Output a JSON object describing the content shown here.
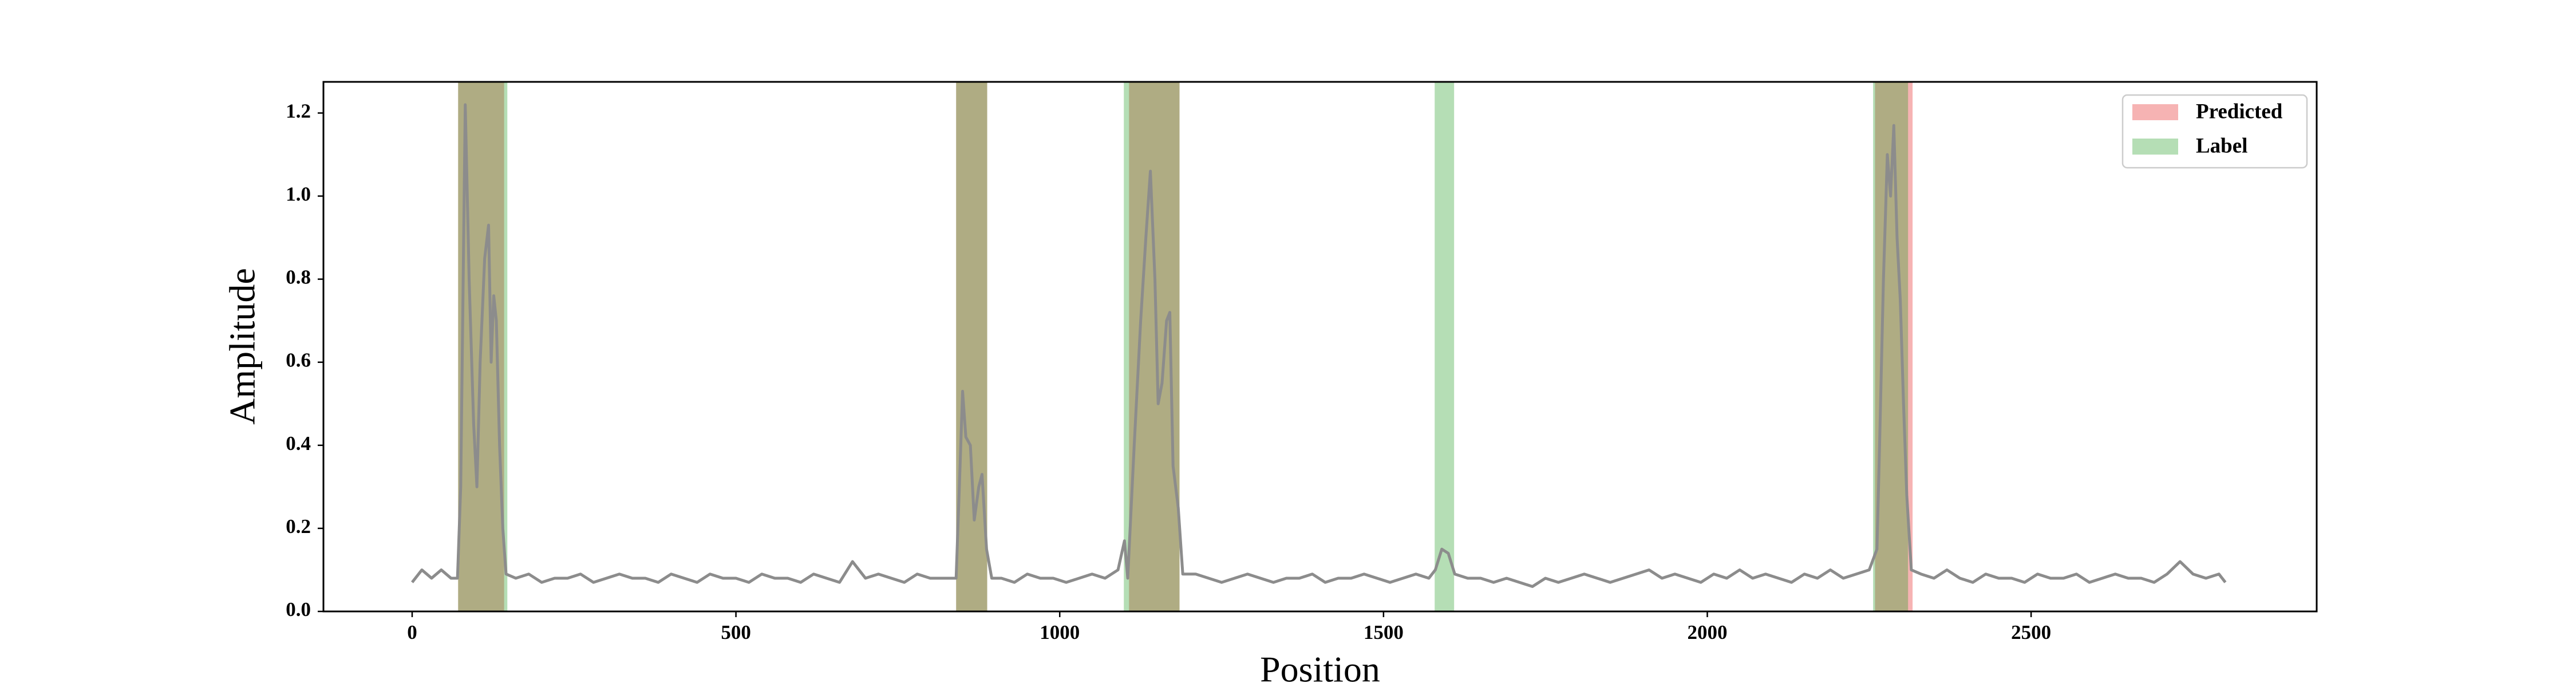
{
  "chart_data": {
    "type": "line",
    "xlabel": "Position",
    "ylabel": "Amplitude",
    "xlim": [
      -137,
      2941
    ],
    "ylim": [
      0,
      1.275
    ],
    "xticks": [
      0,
      500,
      1000,
      1500,
      2000,
      2500
    ],
    "yticks": [
      {
        "value": 0,
        "label": "0.0"
      },
      0.2,
      0.4,
      0.6,
      0.8,
      {
        "value": 1,
        "label": "1.0"
      },
      1.2
    ],
    "legend": "upper right",
    "series": [
      {
        "color": "#8c8c8c",
        "x": [
          0,
          15,
          30,
          45,
          60,
          70,
          75,
          82,
          88,
          95,
          100,
          105,
          112,
          118,
          122,
          126,
          130,
          135,
          140,
          145,
          160,
          180,
          200,
          220,
          240,
          260,
          280,
          300,
          320,
          340,
          360,
          380,
          400,
          420,
          440,
          460,
          480,
          500,
          520,
          540,
          560,
          580,
          600,
          620,
          640,
          660,
          680,
          700,
          720,
          740,
          760,
          780,
          800,
          820,
          840,
          845,
          850,
          855,
          862,
          868,
          875,
          880,
          887,
          895,
          910,
          930,
          950,
          970,
          990,
          1010,
          1030,
          1050,
          1070,
          1090,
          1100,
          1105,
          1115,
          1125,
          1133,
          1140,
          1147,
          1152,
          1158,
          1165,
          1170,
          1175,
          1183,
          1190,
          1210,
          1230,
          1250,
          1270,
          1290,
          1310,
          1330,
          1350,
          1370,
          1390,
          1410,
          1430,
          1450,
          1470,
          1490,
          1510,
          1530,
          1550,
          1570,
          1580,
          1590,
          1600,
          1610,
          1630,
          1650,
          1670,
          1690,
          1710,
          1730,
          1750,
          1770,
          1790,
          1810,
          1830,
          1850,
          1870,
          1890,
          1910,
          1930,
          1950,
          1970,
          1990,
          2010,
          2030,
          2050,
          2070,
          2090,
          2110,
          2130,
          2150,
          2170,
          2190,
          2210,
          2230,
          2250,
          2262,
          2266,
          2272,
          2278,
          2283,
          2288,
          2293,
          2298,
          2303,
          2308,
          2315,
          2330,
          2350,
          2370,
          2390,
          2410,
          2430,
          2450,
          2470,
          2490,
          2510,
          2530,
          2550,
          2570,
          2590,
          2610,
          2630,
          2650,
          2670,
          2690,
          2710,
          2730,
          2750,
          2770,
          2790,
          2800
        ],
        "values": [
          0.07,
          0.1,
          0.08,
          0.1,
          0.08,
          0.08,
          0.3,
          1.22,
          0.8,
          0.45,
          0.3,
          0.6,
          0.85,
          0.93,
          0.6,
          0.76,
          0.7,
          0.4,
          0.2,
          0.09,
          0.08,
          0.09,
          0.07,
          0.08,
          0.08,
          0.09,
          0.07,
          0.08,
          0.09,
          0.08,
          0.08,
          0.07,
          0.09,
          0.08,
          0.07,
          0.09,
          0.08,
          0.08,
          0.07,
          0.09,
          0.08,
          0.08,
          0.07,
          0.09,
          0.08,
          0.07,
          0.12,
          0.08,
          0.09,
          0.08,
          0.07,
          0.09,
          0.08,
          0.08,
          0.08,
          0.3,
          0.53,
          0.42,
          0.4,
          0.22,
          0.3,
          0.33,
          0.15,
          0.08,
          0.08,
          0.07,
          0.09,
          0.08,
          0.08,
          0.07,
          0.08,
          0.09,
          0.08,
          0.1,
          0.17,
          0.08,
          0.4,
          0.7,
          0.9,
          1.06,
          0.8,
          0.5,
          0.55,
          0.7,
          0.72,
          0.35,
          0.25,
          0.09,
          0.09,
          0.08,
          0.07,
          0.08,
          0.09,
          0.08,
          0.07,
          0.08,
          0.08,
          0.09,
          0.07,
          0.08,
          0.08,
          0.09,
          0.08,
          0.07,
          0.08,
          0.09,
          0.08,
          0.1,
          0.15,
          0.14,
          0.09,
          0.08,
          0.08,
          0.07,
          0.08,
          0.07,
          0.06,
          0.08,
          0.07,
          0.08,
          0.09,
          0.08,
          0.07,
          0.08,
          0.09,
          0.1,
          0.08,
          0.09,
          0.08,
          0.07,
          0.09,
          0.08,
          0.1,
          0.08,
          0.09,
          0.08,
          0.07,
          0.09,
          0.08,
          0.1,
          0.08,
          0.09,
          0.1,
          0.15,
          0.4,
          0.8,
          1.1,
          1.0,
          1.17,
          0.9,
          0.75,
          0.5,
          0.28,
          0.1,
          0.09,
          0.08,
          0.1,
          0.08,
          0.07,
          0.09,
          0.08,
          0.08,
          0.07,
          0.09,
          0.08,
          0.08,
          0.09,
          0.07,
          0.08,
          0.09,
          0.08,
          0.08,
          0.07,
          0.09,
          0.12,
          0.09,
          0.08,
          0.09,
          0.07
        ]
      }
    ],
    "regions": [
      {
        "name": "Predicted",
        "color": "#f08080",
        "spans": [
          [
            71,
            142
          ],
          [
            840,
            888
          ],
          [
            1107,
            1185
          ],
          [
            2259,
            2317
          ]
        ]
      },
      {
        "name": "Label",
        "color": "#2ca02c",
        "spans": [
          [
            71,
            147
          ],
          [
            840,
            888
          ],
          [
            1099,
            1185
          ],
          [
            1579,
            1609
          ],
          [
            2256,
            2310
          ]
        ]
      }
    ]
  }
}
